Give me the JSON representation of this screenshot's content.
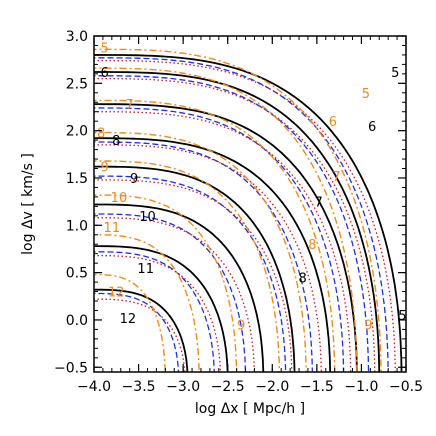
{
  "chart_data": {
    "type": "contour",
    "xlabel": "log Δx  [ Mpc/h ]",
    "ylabel": "log Δv  [ km/s ]",
    "xlim": [
      -4.0,
      -0.5
    ],
    "ylim": [
      -0.55,
      3.0
    ],
    "x_ticks": [
      "−4.0",
      "−3.5",
      "−3.0",
      "−2.5",
      "−2.0",
      "−1.5",
      "−1.0",
      "−0.5"
    ],
    "x_tick_values": [
      -4.0,
      -3.5,
      -3.0,
      -2.5,
      -2.0,
      -1.5,
      -1.0,
      -0.5
    ],
    "y_ticks": [
      "−0.5",
      "0.0",
      "0.5",
      "1.0",
      "1.5",
      "2.0",
      "2.5",
      "3.0"
    ],
    "y_tick_values": [
      -0.5,
      0.0,
      0.5,
      1.0,
      1.5,
      2.0,
      2.5,
      3.0
    ],
    "grid": false,
    "legend": "none",
    "colors": {
      "solid": "#000000",
      "dashed": "#1f2fe0",
      "dotted": "#d01818",
      "dashdot": "#f08a1c"
    },
    "contour_levels": [
      5,
      6,
      7,
      8,
      9,
      10,
      11,
      12
    ],
    "series": [
      {
        "style": "solid",
        "color": "#000000",
        "width": 1.8,
        "dash": "",
        "curves": [
          {
            "level": "5",
            "y0": 2.8,
            "xc": -0.55
          },
          {
            "level": "6",
            "y0": 2.62,
            "xc": -0.8
          },
          {
            "level": "7",
            "y0": 2.28,
            "xc": -1.05
          },
          {
            "level": "8",
            "y0": 1.92,
            "xc": -1.35
          },
          {
            "level": "9",
            "y0": 1.62,
            "xc": -1.75
          },
          {
            "level": "10",
            "y0": 1.22,
            "xc": -2.1
          },
          {
            "level": "11",
            "y0": 0.78,
            "xc": -2.5
          },
          {
            "level": "12",
            "y0": 0.32,
            "xc": -2.95
          }
        ]
      },
      {
        "style": "dashed",
        "color": "#1f2fe0",
        "width": 1.3,
        "dash": "6,3",
        "curves": [
          {
            "level": "5",
            "y0": 2.77,
            "xc": -0.7
          },
          {
            "level": "6",
            "y0": 2.58,
            "xc": -0.92
          },
          {
            "level": "7",
            "y0": 2.24,
            "xc": -1.2
          },
          {
            "level": "8",
            "y0": 1.88,
            "xc": -1.55
          },
          {
            "level": "9",
            "y0": 1.52,
            "xc": -1.85
          },
          {
            "level": "10",
            "y0": 1.12,
            "xc": -2.3
          },
          {
            "level": "11",
            "y0": 0.72,
            "xc": -2.65
          },
          {
            "level": "12",
            "y0": 0.28,
            "xc": -3.05
          }
        ]
      },
      {
        "style": "dotted",
        "color": "#d01818",
        "width": 1.3,
        "dash": "1.5,2.5",
        "curves": [
          {
            "level": "5",
            "y0": 2.74,
            "xc": -0.62
          },
          {
            "level": "6",
            "y0": 2.55,
            "xc": -0.85
          },
          {
            "level": "7",
            "y0": 2.2,
            "xc": -1.12
          },
          {
            "level": "8",
            "y0": 1.85,
            "xc": -1.45
          },
          {
            "level": "9",
            "y0": 1.48,
            "xc": -1.78
          },
          {
            "level": "10",
            "y0": 1.08,
            "xc": -2.2
          },
          {
            "level": "11",
            "y0": 0.68,
            "xc": -2.58
          },
          {
            "level": "12",
            "y0": 0.22,
            "xc": -2.98
          }
        ]
      },
      {
        "style": "dashdot",
        "color": "#f08a1c",
        "width": 1.4,
        "dash": "7,3,2,3",
        "curves": [
          {
            "level": "5",
            "y0": 2.86,
            "xc": -0.78
          },
          {
            "level": "6",
            "y0": 2.66,
            "xc": -1.05
          },
          {
            "level": "7",
            "y0": 2.32,
            "xc": -1.3
          },
          {
            "level": "8",
            "y0": 1.98,
            "xc": -1.62
          },
          {
            "level": "9",
            "y0": 1.68,
            "xc": -1.92
          },
          {
            "level": "10",
            "y0": 1.32,
            "xc": -2.4
          },
          {
            "level": "11",
            "y0": 0.9,
            "xc": -2.82
          },
          {
            "level": "12",
            "y0": 0.48,
            "xc": -3.2
          }
        ]
      }
    ],
    "labels": [
      {
        "text": "5",
        "x": -0.62,
        "y": 2.62,
        "color": "#000000"
      },
      {
        "text": "6",
        "x": -0.88,
        "y": 2.05,
        "color": "#000000"
      },
      {
        "text": "6",
        "x": -3.88,
        "y": 2.62,
        "color": "#000000"
      },
      {
        "text": "7",
        "x": -1.48,
        "y": 1.25,
        "color": "#000000"
      },
      {
        "text": "8",
        "x": -3.75,
        "y": 1.9,
        "color": "#000000"
      },
      {
        "text": "8",
        "x": -1.66,
        "y": 0.45,
        "color": "#000000"
      },
      {
        "text": "9",
        "x": -3.55,
        "y": 1.5,
        "color": "#000000"
      },
      {
        "text": "10",
        "x": -3.4,
        "y": 1.1,
        "color": "#000000"
      },
      {
        "text": "11",
        "x": -3.42,
        "y": 0.55,
        "color": "#000000"
      },
      {
        "text": "12",
        "x": -3.62,
        "y": 0.02,
        "color": "#000000"
      },
      {
        "text": "5",
        "x": -0.54,
        "y": 0.05,
        "color": "#000000"
      },
      {
        "text": "5",
        "x": -3.88,
        "y": 2.88,
        "color": "#f08a1c"
      },
      {
        "text": "7",
        "x": -3.6,
        "y": 2.28,
        "color": "#f08a1c"
      },
      {
        "text": "8",
        "x": -3.92,
        "y": 1.98,
        "color": "#f08a1c"
      },
      {
        "text": "9",
        "x": -3.88,
        "y": 1.62,
        "color": "#f08a1c"
      },
      {
        "text": "10",
        "x": -3.72,
        "y": 1.3,
        "color": "#f08a1c"
      },
      {
        "text": "11",
        "x": -3.8,
        "y": 0.98,
        "color": "#f08a1c"
      },
      {
        "text": "12",
        "x": -3.75,
        "y": 0.3,
        "color": "#f08a1c"
      },
      {
        "text": "5",
        "x": -0.95,
        "y": 2.4,
        "color": "#f08a1c"
      },
      {
        "text": "6",
        "x": -1.32,
        "y": 2.1,
        "color": "#f08a1c"
      },
      {
        "text": "7",
        "x": -1.28,
        "y": 1.52,
        "color": "#f08a1c"
      },
      {
        "text": "8",
        "x": -1.55,
        "y": 0.8,
        "color": "#f08a1c"
      },
      {
        "text": "9",
        "x": -2.35,
        "y": -0.05,
        "color": "#f08a1c"
      },
      {
        "text": "9",
        "x": -0.92,
        "y": -0.05,
        "color": "#f08a1c"
      }
    ]
  }
}
